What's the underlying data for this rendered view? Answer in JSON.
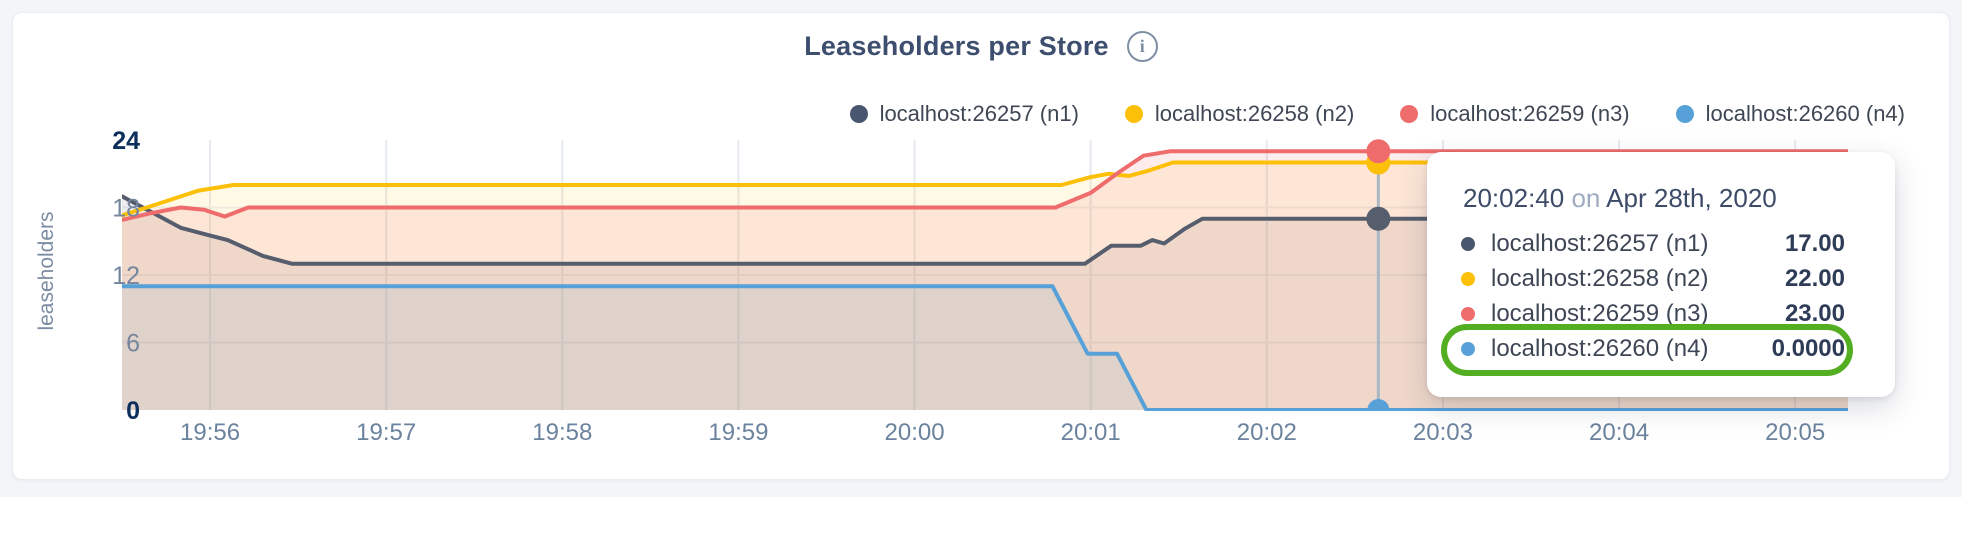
{
  "page": {
    "background": "#f3f5f9",
    "card_background": "#ffffff"
  },
  "header": {
    "title": "Leaseholders per Store",
    "info_glyph": "i"
  },
  "legend": {
    "items": [
      {
        "label": "localhost:26257 (n1)",
        "color": "#49566f"
      },
      {
        "label": "localhost:26258 (n2)",
        "color": "#fdc008"
      },
      {
        "label": "localhost:26259 (n3)",
        "color": "#ef6c6c"
      },
      {
        "label": "localhost:26260 (n4)",
        "color": "#57a1d8"
      }
    ]
  },
  "chart_data": {
    "type": "line",
    "title": "Leaseholders per Store",
    "xlabel": "",
    "ylabel": "leaseholders",
    "ylim": [
      0,
      24
    ],
    "grid": true,
    "legend_position": "top-right",
    "x_ticks": [
      {
        "t": 30,
        "label": "19:56"
      },
      {
        "t": 90,
        "label": "19:57"
      },
      {
        "t": 150,
        "label": "19:58"
      },
      {
        "t": 210,
        "label": "19:59"
      },
      {
        "t": 270,
        "label": "20:00"
      },
      {
        "t": 330,
        "label": "20:01"
      },
      {
        "t": 390,
        "label": "20:02"
      },
      {
        "t": 450,
        "label": "20:03"
      },
      {
        "t": 510,
        "label": "20:04"
      },
      {
        "t": 570,
        "label": "20:05"
      }
    ],
    "y_ticks": [
      {
        "v": 0,
        "label": "0",
        "emphasis": true
      },
      {
        "v": 6,
        "label": "6",
        "emphasis": false
      },
      {
        "v": 12,
        "label": "12",
        "emphasis": false
      },
      {
        "v": 18,
        "label": "18",
        "emphasis": false
      },
      {
        "v": 24,
        "label": "24",
        "emphasis": true
      }
    ],
    "t_range_seconds_from_19_55_30": [
      0,
      588
    ],
    "series": [
      {
        "name": "localhost:26257 (n1)",
        "color": "#565d6d",
        "dot_color": "#49566f",
        "fill_opacity": 0.1,
        "points": [
          [
            0,
            19
          ],
          [
            10,
            17.6
          ],
          [
            20,
            16.2
          ],
          [
            30,
            15.5
          ],
          [
            36,
            15.1
          ],
          [
            48,
            13.7
          ],
          [
            58,
            13
          ],
          [
            328,
            13
          ],
          [
            337,
            14.6
          ],
          [
            347,
            14.6
          ],
          [
            351,
            15.1
          ],
          [
            355,
            14.8
          ],
          [
            362,
            16.1
          ],
          [
            368,
            17
          ],
          [
            588,
            17
          ]
        ]
      },
      {
        "name": "localhost:26258 (n2)",
        "color": "#fdc008",
        "dot_color": "#fdc008",
        "fill_opacity": 0.1,
        "points": [
          [
            0,
            17.3
          ],
          [
            12,
            18.3
          ],
          [
            26,
            19.5
          ],
          [
            38,
            20
          ],
          [
            320,
            20
          ],
          [
            330,
            20.7
          ],
          [
            336,
            21
          ],
          [
            343,
            20.8
          ],
          [
            350,
            21.3
          ],
          [
            358,
            22
          ],
          [
            588,
            22
          ]
        ]
      },
      {
        "name": "localhost:26259 (n3)",
        "color": "#ef6c6c",
        "dot_color": "#ef6c6c",
        "fill_opacity": 0.13,
        "points": [
          [
            0,
            16.9
          ],
          [
            10,
            17.5
          ],
          [
            20,
            18
          ],
          [
            28,
            17.8
          ],
          [
            35,
            17.2
          ],
          [
            43,
            18
          ],
          [
            318,
            18
          ],
          [
            330,
            19.3
          ],
          [
            340,
            21.2
          ],
          [
            348,
            22.6
          ],
          [
            357,
            23
          ],
          [
            588,
            23
          ]
        ]
      },
      {
        "name": "localhost:26260 (n4)",
        "color": "#57a1d8",
        "dot_color": "#57a1d8",
        "fill_opacity": 0.1,
        "points": [
          [
            0,
            11
          ],
          [
            317,
            11
          ],
          [
            329,
            5
          ],
          [
            339,
            5
          ],
          [
            349,
            0
          ],
          [
            588,
            0
          ]
        ]
      }
    ],
    "hover": {
      "t": 428,
      "time_label": "20:02:40",
      "dot_values": [
        17,
        22,
        23,
        0
      ]
    }
  },
  "tooltip": {
    "time": "20:02:40",
    "preposition": "on",
    "date": "Apr 28th, 2020",
    "rows": [
      {
        "name": "localhost:26257 (n1)",
        "value": "17.00",
        "color": "#49566f",
        "highlighted": false
      },
      {
        "name": "localhost:26258 (n2)",
        "value": "22.00",
        "color": "#fdc008",
        "highlighted": false
      },
      {
        "name": "localhost:26259 (n3)",
        "value": "23.00",
        "color": "#ef6c6c",
        "highlighted": false
      },
      {
        "name": "localhost:26260 (n4)",
        "value": "0.0000",
        "color": "#57a1d8",
        "highlighted": true
      }
    ],
    "highlight_color": "#53ae22"
  }
}
